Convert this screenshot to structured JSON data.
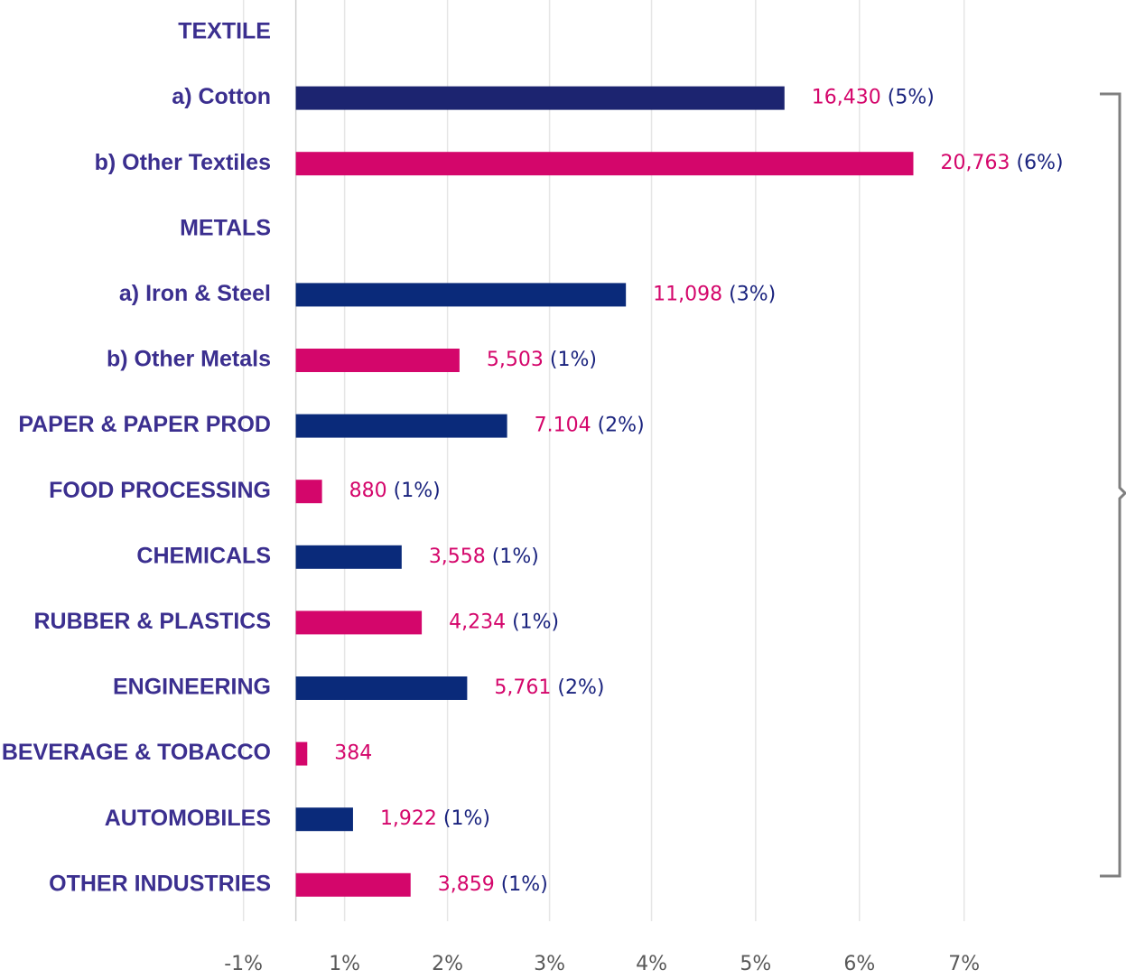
{
  "chart_data": {
    "type": "bar",
    "orientation": "horizontal",
    "categories": [
      "TEXTILE",
      "a) Cotton",
      "b) Other Textiles",
      "METALS",
      "a) Iron & Steel",
      "b) Other Metals",
      "PAPER & PAPER PROD",
      "FOOD PROCESSING",
      "CHEMICALS",
      "RUBBER & PLASTICS",
      "ENGINEERING",
      "BEVERAGE & TOBACCO",
      "AUTOMOBILES",
      "OTHER INDUSTRIES"
    ],
    "values": [
      null,
      16430,
      20763,
      null,
      11098,
      5503,
      7104,
      880,
      3558,
      4234,
      5761,
      384,
      1922,
      3859
    ],
    "value_labels": [
      null,
      "16,430",
      "20,763",
      null,
      "11,098",
      "5,503",
      "7.104",
      "880",
      "3,558",
      "4,234",
      "5,761",
      "384",
      "1,922",
      "3,859"
    ],
    "share_labels": [
      null,
      "(5%)",
      "(6%)",
      null,
      "(3%)",
      "(1%)",
      "(2%)",
      "(1%)",
      "(1%)",
      "(1%)",
      "(2%)",
      null,
      "(1%)",
      "(1%)"
    ],
    "colors": [
      null,
      "#1c2470",
      "#d4066b",
      null,
      "#0a2a7a",
      "#d4066b",
      "#0a2a7a",
      "#d4066b",
      "#0a2a7a",
      "#d4066b",
      "#0a2a7a",
      "#d4066b",
      "#0a2a7a",
      "#d4066b"
    ],
    "label_color": "#d4066b",
    "share_color": "#1a237e",
    "category_color": "#3b2f8f",
    "xlim": [
      -2600,
      24300
    ],
    "xticks": [
      {
        "value": -1760,
        "label": "-1%"
      },
      {
        "value": 1640,
        "label": "1%"
      },
      {
        "value": 5100,
        "label": "2%"
      },
      {
        "value": 8530,
        "label": "3%"
      },
      {
        "value": 11960,
        "label": "4%"
      },
      {
        "value": 15460,
        "label": "5%"
      },
      {
        "value": 18950,
        "label": "6%"
      },
      {
        "value": 22470,
        "label": "7%"
      }
    ],
    "grid": true
  }
}
